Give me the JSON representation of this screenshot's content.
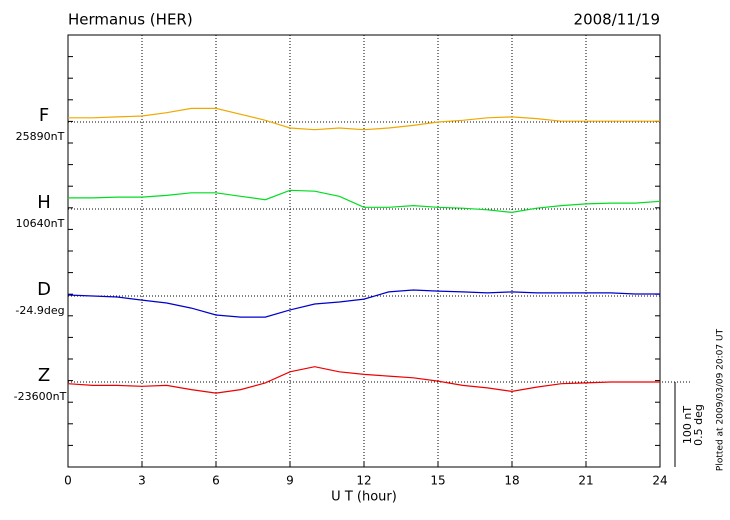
{
  "chart_data": {
    "type": "line",
    "title": "Hermanus (HER)",
    "date": "2008/11/19",
    "x_label": "U T (hour)",
    "note": "Plotted at 2009/03/09 20:07 UT",
    "x": [
      0,
      1,
      2,
      3,
      4,
      5,
      6,
      7,
      8,
      9,
      10,
      11,
      12,
      13,
      14,
      15,
      16,
      17,
      18,
      19,
      20,
      21,
      22,
      23,
      24
    ],
    "xlim": [
      0,
      24
    ],
    "xticks": [
      0,
      3,
      6,
      9,
      12,
      15,
      18,
      21,
      24
    ],
    "grid": true,
    "scale_bar": {
      "nT": {
        "value": 100,
        "label": "100 nT"
      },
      "deg": {
        "value": 0.5,
        "label": "0.5 deg"
      }
    },
    "series": [
      {
        "name": "F",
        "color": "#f0a800",
        "unit": "nT",
        "baseline": {
          "value": 25890,
          "label": "25890nT"
        },
        "values": [
          25895,
          25895,
          25896,
          25897,
          25901,
          25906,
          25906,
          25899,
          25892,
          25883,
          25881,
          25883,
          25881,
          25883,
          25886,
          25890,
          25892,
          25895,
          25896,
          25894,
          25891,
          25891,
          25891,
          25891,
          25891
        ]
      },
      {
        "name": "H",
        "color": "#00dd22",
        "unit": "nT",
        "baseline": {
          "value": 10640,
          "label": "10640nT"
        },
        "values": [
          10653,
          10653,
          10654,
          10654,
          10656,
          10659,
          10659,
          10655,
          10651,
          10662,
          10661,
          10655,
          10642,
          10642,
          10644,
          10642,
          10641,
          10639,
          10636,
          10641,
          10644,
          10646,
          10647,
          10647,
          10649
        ]
      },
      {
        "name": "D",
        "color": "#0000cc",
        "unit": "deg",
        "baseline": {
          "value": -24.9,
          "label": "-24.9deg"
        },
        "values": [
          -24.894,
          -24.9,
          -24.906,
          -24.924,
          -24.941,
          -24.971,
          -25.012,
          -25.024,
          -25.024,
          -24.982,
          -24.947,
          -24.935,
          -24.918,
          -24.876,
          -24.865,
          -24.871,
          -24.876,
          -24.882,
          -24.876,
          -24.882,
          -24.882,
          -24.882,
          -24.882,
          -24.888,
          -24.888
        ]
      },
      {
        "name": "Z",
        "color": "#ee0000",
        "unit": "nT",
        "baseline": {
          "value": -23600,
          "label": "-23600nT"
        },
        "values": [
          -23602,
          -23604,
          -23604,
          -23605,
          -23604,
          -23609,
          -23613,
          -23609,
          -23601,
          -23588,
          -23582,
          -23588,
          -23591,
          -23593,
          -23595,
          -23599,
          -23604,
          -23607,
          -23611,
          -23606,
          -23602,
          -23601,
          -23600,
          -23600,
          -23600
        ]
      }
    ]
  }
}
